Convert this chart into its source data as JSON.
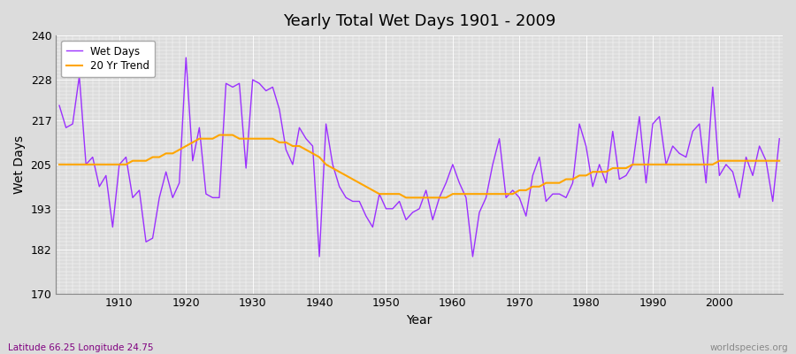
{
  "title": "Yearly Total Wet Days 1901 - 2009",
  "xlabel": "Year",
  "ylabel": "Wet Days",
  "footnote_left": "Latitude 66.25 Longitude 24.75",
  "footnote_right": "worldspecies.org",
  "wet_days_color": "#9B30FF",
  "trend_color": "#FFA500",
  "background_color": "#DCDCDC",
  "fig_facecolor": "#DCDCDC",
  "ylim": [
    170,
    240
  ],
  "yticks": [
    170,
    182,
    193,
    205,
    217,
    228,
    240
  ],
  "years": [
    1901,
    1902,
    1903,
    1904,
    1905,
    1906,
    1907,
    1908,
    1909,
    1910,
    1911,
    1912,
    1913,
    1914,
    1915,
    1916,
    1917,
    1918,
    1919,
    1920,
    1921,
    1922,
    1923,
    1924,
    1925,
    1926,
    1927,
    1928,
    1929,
    1930,
    1931,
    1932,
    1933,
    1934,
    1935,
    1936,
    1937,
    1938,
    1939,
    1940,
    1941,
    1942,
    1943,
    1944,
    1945,
    1946,
    1947,
    1948,
    1949,
    1950,
    1951,
    1952,
    1953,
    1954,
    1955,
    1956,
    1957,
    1958,
    1959,
    1960,
    1961,
    1962,
    1963,
    1964,
    1965,
    1966,
    1967,
    1968,
    1969,
    1970,
    1971,
    1972,
    1973,
    1974,
    1975,
    1976,
    1977,
    1978,
    1979,
    1980,
    1981,
    1982,
    1983,
    1984,
    1985,
    1986,
    1987,
    1988,
    1989,
    1990,
    1991,
    1992,
    1993,
    1994,
    1995,
    1996,
    1997,
    1998,
    1999,
    2000,
    2001,
    2002,
    2003,
    2004,
    2005,
    2006,
    2007,
    2008,
    2009
  ],
  "wet_days": [
    221,
    215,
    216,
    229,
    205,
    207,
    199,
    202,
    188,
    205,
    207,
    196,
    198,
    184,
    185,
    196,
    203,
    196,
    200,
    234,
    206,
    215,
    197,
    196,
    196,
    227,
    226,
    227,
    204,
    228,
    227,
    225,
    226,
    220,
    209,
    205,
    215,
    212,
    210,
    180,
    216,
    205,
    199,
    196,
    195,
    195,
    191,
    188,
    197,
    193,
    193,
    195,
    190,
    192,
    193,
    198,
    190,
    196,
    200,
    205,
    200,
    196,
    180,
    192,
    196,
    205,
    212,
    196,
    198,
    196,
    191,
    202,
    207,
    195,
    197,
    197,
    196,
    200,
    216,
    210,
    199,
    205,
    200,
    214,
    201,
    202,
    205,
    218,
    200,
    216,
    218,
    205,
    210,
    208,
    207,
    214,
    216,
    200,
    226,
    202,
    205,
    203,
    196,
    207,
    202,
    210,
    206,
    195,
    212
  ],
  "trend": [
    205,
    205,
    205,
    205,
    205,
    205,
    205,
    205,
    205,
    205,
    205,
    206,
    206,
    206,
    207,
    207,
    208,
    208,
    209,
    210,
    211,
    212,
    212,
    212,
    213,
    213,
    213,
    212,
    212,
    212,
    212,
    212,
    212,
    211,
    211,
    210,
    210,
    209,
    208,
    207,
    205,
    204,
    203,
    202,
    201,
    200,
    199,
    198,
    197,
    197,
    197,
    197,
    196,
    196,
    196,
    196,
    196,
    196,
    196,
    197,
    197,
    197,
    197,
    197,
    197,
    197,
    197,
    197,
    197,
    198,
    198,
    199,
    199,
    200,
    200,
    200,
    201,
    201,
    202,
    202,
    203,
    203,
    203,
    204,
    204,
    204,
    205,
    205,
    205,
    205,
    205,
    205,
    205,
    205,
    205,
    205,
    205,
    205,
    205,
    206,
    206,
    206,
    206,
    206,
    206,
    206,
    206,
    206,
    206
  ]
}
